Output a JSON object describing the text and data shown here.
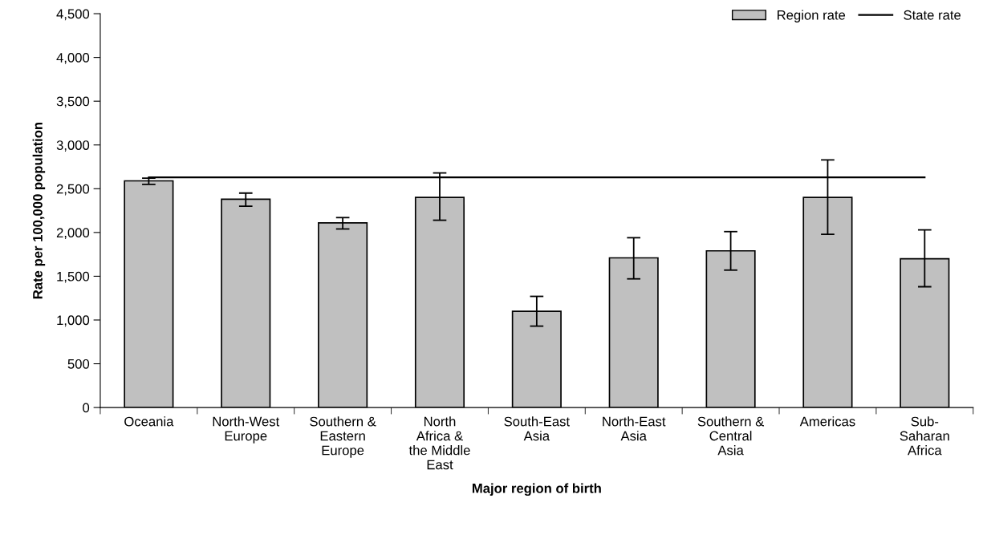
{
  "chart_data": {
    "type": "bar",
    "xlabel": "Major region of birth",
    "ylabel": "Rate per 100,000 population",
    "categories": [
      "Oceania",
      "North-West\nEurope",
      "Southern &\nEastern\nEurope",
      "North\nAfrica &\nthe Middle\nEast",
      "South-East\nAsia",
      "North-East\nAsia",
      "Southern &\nCentral\nAsia",
      "Americas",
      "Sub-\nSaharan\nAfrica"
    ],
    "series": [
      {
        "name": "Region rate",
        "color": "#c0c0c0",
        "values": [
          2590,
          2380,
          2110,
          2400,
          1100,
          1710,
          1790,
          2400,
          1700
        ],
        "errors": [
          [
            2550,
            2620
          ],
          [
            2300,
            2450
          ],
          [
            2040,
            2170
          ],
          [
            2140,
            2680
          ],
          [
            930,
            1270
          ],
          [
            1470,
            1940
          ],
          [
            1570,
            2010
          ],
          [
            1980,
            2830
          ],
          [
            1380,
            2030
          ]
        ]
      },
      {
        "name": "State rate",
        "type": "line",
        "color": "#000000",
        "values": [
          2630,
          2630,
          2630,
          2630,
          2630,
          2630,
          2630,
          2630,
          2630
        ]
      }
    ],
    "ylim": [
      0,
      4500
    ],
    "yticks": [
      {
        "value": 0,
        "label": "0"
      },
      {
        "value": 500,
        "label": "500"
      },
      {
        "value": 1000,
        "label": "1,000"
      },
      {
        "value": 1500,
        "label": "1,500"
      },
      {
        "value": 2000,
        "label": "2,000"
      },
      {
        "value": 2500,
        "label": "2,500"
      },
      {
        "value": 3000,
        "label": "3,000"
      },
      {
        "value": 3500,
        "label": "3,500"
      },
      {
        "value": 4000,
        "label": "4,000"
      },
      {
        "value": 4500,
        "label": "4,500"
      }
    ],
    "grid": false,
    "legend": "top right",
    "marker": "none",
    "line_style": "solid"
  }
}
